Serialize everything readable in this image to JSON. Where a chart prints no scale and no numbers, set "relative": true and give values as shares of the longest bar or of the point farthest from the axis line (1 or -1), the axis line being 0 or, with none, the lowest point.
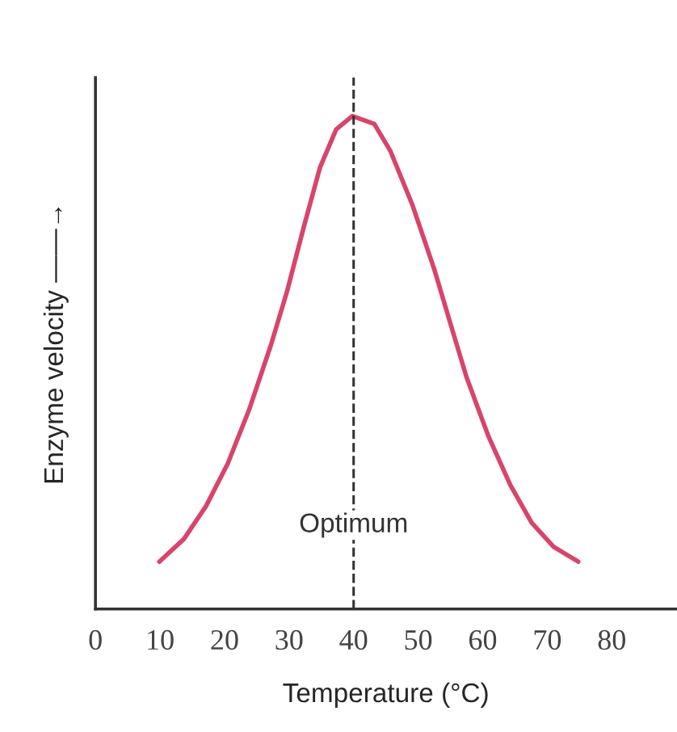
{
  "chart_data": {
    "type": "line",
    "relative": true,
    "xlabel": "Temperature (°C)",
    "ylabel": "Enzyme velocity ——→",
    "xlim": [
      0,
      90
    ],
    "xticks": [
      0,
      10,
      20,
      30,
      40,
      50,
      60,
      70,
      80
    ],
    "series": [
      {
        "color": "#d8456a",
        "x": [
          9.9,
          13.7,
          17.1,
          20.5,
          23.8,
          27.2,
          29.7,
          32.3,
          34.8,
          37.3,
          39.8,
          43.2,
          45.7,
          49.1,
          52.5,
          55.0,
          57.5,
          60.9,
          64.3,
          67.6,
          71.0,
          74.8
        ],
        "values": [
          0.096,
          0.142,
          0.208,
          0.295,
          0.404,
          0.536,
          0.645,
          0.776,
          0.896,
          0.973,
          1.0,
          0.984,
          0.929,
          0.82,
          0.689,
          0.579,
          0.47,
          0.35,
          0.251,
          0.175,
          0.126,
          0.096
        ]
      }
    ],
    "ref_lines": [
      {
        "axis": "x",
        "value": 40,
        "label": "Optimum",
        "color": "#333333",
        "line_style": "dashed"
      }
    ],
    "grid": false,
    "marker": "none",
    "line_style": "solid"
  }
}
